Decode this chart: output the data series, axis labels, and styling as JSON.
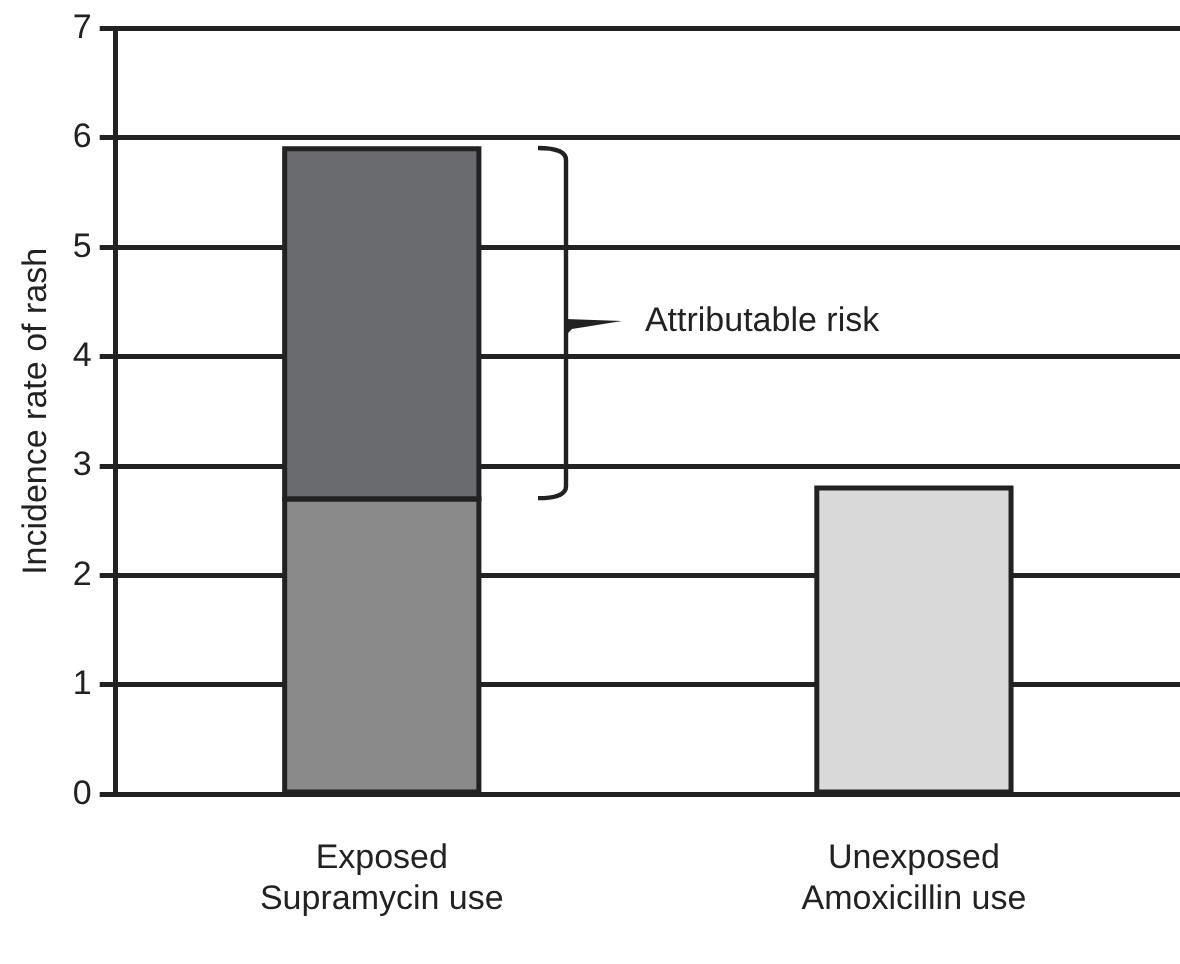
{
  "chart_data": {
    "type": "bar",
    "stacked": true,
    "ylabel": "Incidence rate of rash",
    "categories": [
      "Exposed\nSupramycin use",
      "Unexposed\nAmoxicillin use"
    ],
    "series": [
      {
        "colors": [
          "#8a8a8a",
          "#d9d9d9"
        ],
        "values": [
          2.7,
          2.8
        ]
      },
      {
        "color": "#6a6b6e",
        "values": [
          3.2,
          null
        ]
      }
    ],
    "ylim": [
      0,
      7
    ],
    "yticks": [
      0,
      1,
      2,
      3,
      4,
      5,
      6,
      7
    ],
    "grid": "y",
    "legend": false,
    "annotations": [
      "Attributable risk"
    ]
  }
}
